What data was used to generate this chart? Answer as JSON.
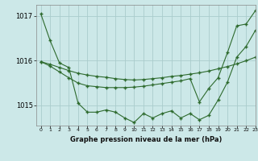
{
  "title": "Graphe pression niveau de la mer (hPa)",
  "bg_color": "#cce8e8",
  "grid_color": "#aacccc",
  "line_color": "#2d6a2d",
  "xlim": [
    -0.5,
    23
  ],
  "ylim": [
    1014.55,
    1017.25
  ],
  "yticks": [
    1015,
    1016,
    1017
  ],
  "xticks": [
    0,
    1,
    2,
    3,
    4,
    5,
    6,
    7,
    8,
    9,
    10,
    11,
    12,
    13,
    14,
    15,
    16,
    17,
    18,
    19,
    20,
    21,
    22,
    23
  ],
  "series": [
    [
      1017.05,
      1016.45,
      1015.95,
      1015.85,
      1015.05,
      1014.85,
      1014.85,
      1014.9,
      1014.85,
      1014.72,
      1014.62,
      1014.82,
      1014.72,
      1014.82,
      1014.88,
      1014.72,
      1014.82,
      1014.68,
      1014.78,
      1015.12,
      1015.52,
      1016.08,
      1016.32,
      1016.68
    ],
    [
      1015.98,
      1015.92,
      1015.85,
      1015.78,
      1015.72,
      1015.68,
      1015.65,
      1015.63,
      1015.6,
      1015.58,
      1015.57,
      1015.58,
      1015.6,
      1015.62,
      1015.65,
      1015.67,
      1015.7,
      1015.73,
      1015.77,
      1015.82,
      1015.87,
      1015.93,
      1016.0,
      1016.08
    ],
    [
      1015.98,
      1015.88,
      1015.75,
      1015.62,
      1015.5,
      1015.44,
      1015.42,
      1015.4,
      1015.4,
      1015.4,
      1015.41,
      1015.43,
      1015.46,
      1015.49,
      1015.52,
      1015.55,
      1015.6,
      1015.08,
      1015.38,
      1015.62,
      1016.18,
      1016.78,
      1016.82,
      1017.12
    ]
  ]
}
